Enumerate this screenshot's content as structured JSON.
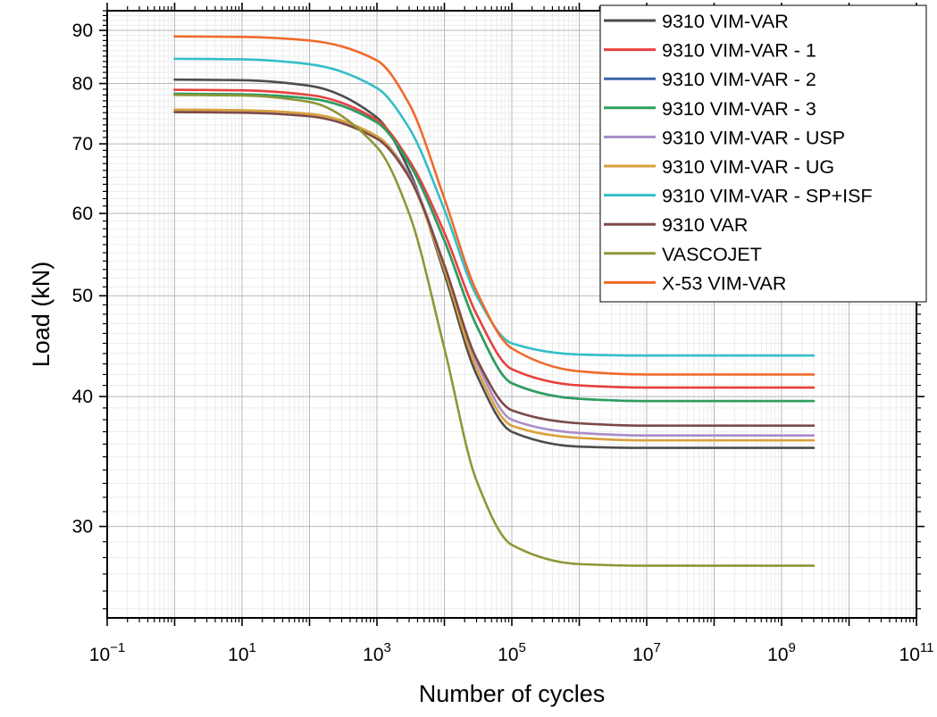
{
  "chart_data": {
    "type": "line",
    "title": "",
    "xlabel": "Number of cycles",
    "ylabel": "Load (kN)",
    "xscale": "log",
    "yscale": "log",
    "xlim": [
      0.1,
      100000000000
    ],
    "ylim": [
      24.5,
      94
    ],
    "grid": true,
    "legend_position": "top-right",
    "x_ticks": [
      {
        "value": 0.1,
        "base": "10",
        "exp": "−1"
      },
      {
        "value": 10,
        "base": "10",
        "exp": "1"
      },
      {
        "value": 1000,
        "base": "10",
        "exp": "3"
      },
      {
        "value": 100000,
        "base": "10",
        "exp": "5"
      },
      {
        "value": 10000000,
        "base": "10",
        "exp": "7"
      },
      {
        "value": 1000000000,
        "base": "10",
        "exp": "9"
      },
      {
        "value": 100000000000,
        "base": "10",
        "exp": "11"
      }
    ],
    "y_ticks": [
      {
        "value": 30,
        "label": "30"
      },
      {
        "value": 40,
        "label": "40"
      },
      {
        "value": 50,
        "label": "50"
      },
      {
        "value": 60,
        "label": "60"
      },
      {
        "value": 70,
        "label": "70"
      },
      {
        "value": 80,
        "label": "80"
      },
      {
        "value": 90,
        "label": "90"
      }
    ],
    "x": [
      1,
      10,
      100,
      1000,
      3000,
      10000,
      30000,
      100000,
      1000000,
      10000000,
      100000000,
      3000000000
    ],
    "series": [
      {
        "name": "9310 VIM-VAR",
        "color": "#4d4d4d",
        "values": [
          80.7,
          80.6,
          79.6,
          74.2,
          66.0,
          52.5,
          42.0,
          37.0,
          35.8,
          35.7,
          35.7,
          35.7
        ]
      },
      {
        "name": "9310 VIM-VAR - 1",
        "color": "#e8403e",
        "values": [
          78.9,
          78.8,
          78.0,
          73.8,
          67.5,
          57.5,
          48.0,
          42.5,
          41.0,
          40.8,
          40.8,
          40.8
        ]
      },
      {
        "name": "9310 VIM-VAR - 2",
        "color": "#3b64a8",
        "values": [
          78.2,
          78.1,
          77.4,
          73.4,
          67.0,
          56.5,
          46.8,
          41.2,
          39.8,
          39.6,
          39.6,
          39.6
        ]
      },
      {
        "name": "9310 VIM-VAR - 3",
        "color": "#2e9e5e",
        "values": [
          78.2,
          78.1,
          77.4,
          73.4,
          67.0,
          56.5,
          46.8,
          41.2,
          39.8,
          39.6,
          39.6,
          39.6
        ]
      },
      {
        "name": "9310 VIM-VAR - USP",
        "color": "#a98cc9",
        "values": [
          75.5,
          75.4,
          74.8,
          71.2,
          65.3,
          53.5,
          43.2,
          38.0,
          36.9,
          36.7,
          36.7,
          36.7
        ]
      },
      {
        "name": "9310 VIM-VAR - UG",
        "color": "#d9a13a",
        "values": [
          75.5,
          75.4,
          74.8,
          71.2,
          65.0,
          53.0,
          42.6,
          37.5,
          36.5,
          36.3,
          36.3,
          36.3
        ]
      },
      {
        "name": "9310 VIM-VAR - SP+ISF",
        "color": "#35bec7",
        "values": [
          84.5,
          84.4,
          83.5,
          79.2,
          72.5,
          60.5,
          50.0,
          45.0,
          43.9,
          43.8,
          43.8,
          43.8
        ]
      },
      {
        "name": "9310 VAR",
        "color": "#7c4a4a",
        "values": [
          75.1,
          75.0,
          74.4,
          70.8,
          65.0,
          53.5,
          43.5,
          38.8,
          37.7,
          37.5,
          37.5,
          37.5
        ]
      },
      {
        "name": "VASCOJET",
        "color": "#8f9637",
        "values": [
          78.0,
          77.9,
          76.8,
          69.5,
          60.0,
          44.5,
          33.2,
          28.8,
          27.6,
          27.5,
          27.5,
          27.5
        ]
      },
      {
        "name": "X-53 VIM-VAR",
        "color": "#f06a2a",
        "values": [
          88.8,
          88.7,
          88.0,
          84.2,
          76.5,
          62.0,
          50.5,
          44.5,
          42.3,
          42.0,
          42.0,
          42.0
        ]
      }
    ]
  }
}
